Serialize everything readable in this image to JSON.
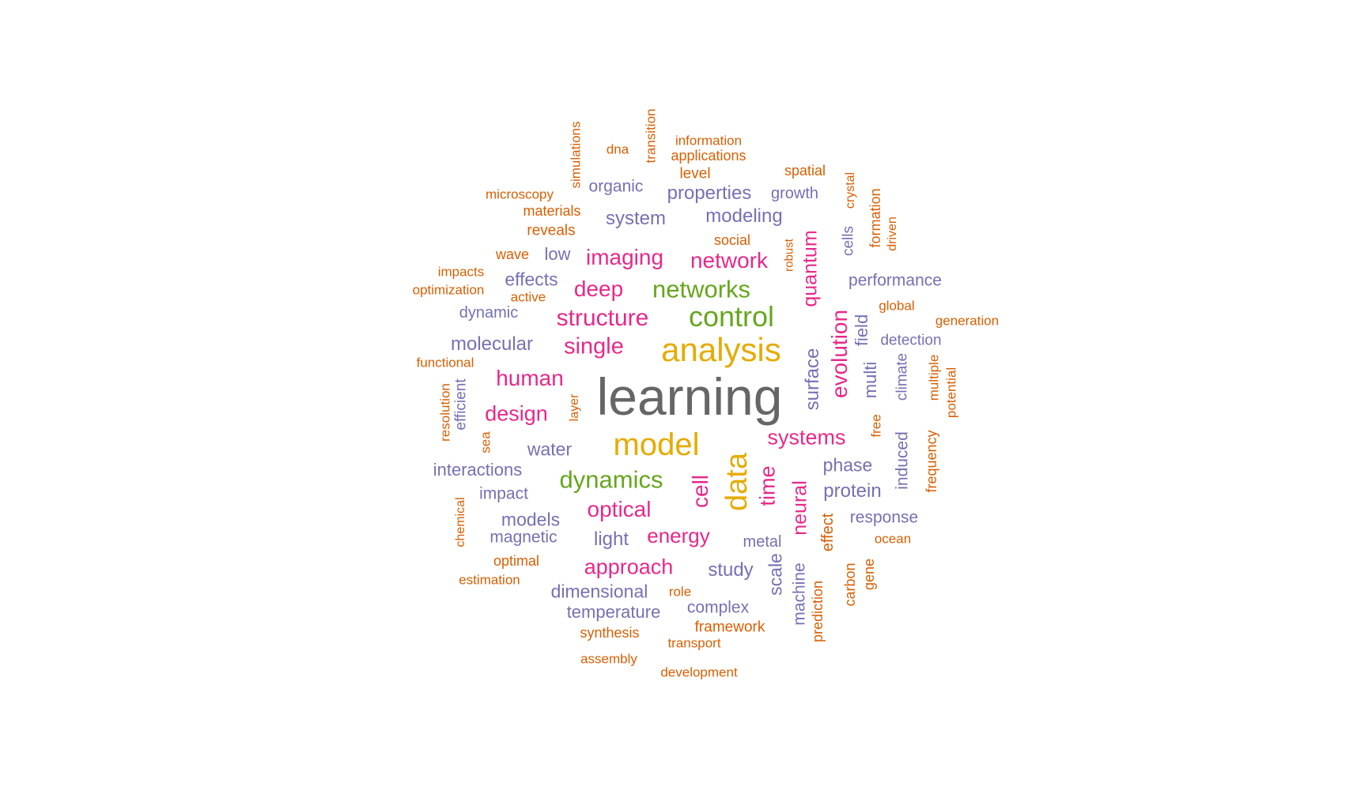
{
  "colors": {
    "gray": "#666666",
    "gold": "#E6AB02",
    "green": "#66A61E",
    "pink": "#E7298A",
    "purple": "#7570B3",
    "orange": "#D95F02"
  },
  "words": [
    {
      "text": "learning",
      "color": "gray"
    },
    {
      "text": "analysis",
      "color": "gold"
    },
    {
      "text": "model",
      "color": "gold"
    },
    {
      "text": "data",
      "color": "gold"
    },
    {
      "text": "control",
      "color": "green"
    },
    {
      "text": "networks",
      "color": "green"
    },
    {
      "text": "dynamics",
      "color": "green"
    },
    {
      "text": "imaging",
      "color": "pink"
    },
    {
      "text": "network",
      "color": "pink"
    },
    {
      "text": "deep",
      "color": "pink"
    },
    {
      "text": "structure",
      "color": "pink"
    },
    {
      "text": "single",
      "color": "pink"
    },
    {
      "text": "human",
      "color": "pink"
    },
    {
      "text": "design",
      "color": "pink"
    },
    {
      "text": "systems",
      "color": "pink"
    },
    {
      "text": "optical",
      "color": "pink"
    },
    {
      "text": "energy",
      "color": "pink"
    },
    {
      "text": "approach",
      "color": "pink"
    },
    {
      "text": "quantum",
      "color": "pink"
    },
    {
      "text": "evolution",
      "color": "pink"
    },
    {
      "text": "cell",
      "color": "pink"
    },
    {
      "text": "time",
      "color": "pink"
    },
    {
      "text": "neural",
      "color": "pink"
    },
    {
      "text": "organic",
      "color": "purple"
    },
    {
      "text": "properties",
      "color": "purple"
    },
    {
      "text": "growth",
      "color": "purple"
    },
    {
      "text": "system",
      "color": "purple"
    },
    {
      "text": "modeling",
      "color": "purple"
    },
    {
      "text": "low",
      "color": "purple"
    },
    {
      "text": "effects",
      "color": "purple"
    },
    {
      "text": "performance",
      "color": "purple"
    },
    {
      "text": "dynamic",
      "color": "purple"
    },
    {
      "text": "molecular",
      "color": "purple"
    },
    {
      "text": "detection",
      "color": "purple"
    },
    {
      "text": "water",
      "color": "purple"
    },
    {
      "text": "phase",
      "color": "purple"
    },
    {
      "text": "interactions",
      "color": "purple"
    },
    {
      "text": "protein",
      "color": "purple"
    },
    {
      "text": "impact",
      "color": "purple"
    },
    {
      "text": "models",
      "color": "purple"
    },
    {
      "text": "response",
      "color": "purple"
    },
    {
      "text": "magnetic",
      "color": "purple"
    },
    {
      "text": "light",
      "color": "purple"
    },
    {
      "text": "metal",
      "color": "purple"
    },
    {
      "text": "study",
      "color": "purple"
    },
    {
      "text": "dimensional",
      "color": "purple"
    },
    {
      "text": "complex",
      "color": "purple"
    },
    {
      "text": "temperature",
      "color": "purple"
    },
    {
      "text": "cells",
      "color": "purple"
    },
    {
      "text": "surface",
      "color": "purple"
    },
    {
      "text": "field",
      "color": "purple"
    },
    {
      "text": "multi",
      "color": "purple"
    },
    {
      "text": "climate",
      "color": "purple"
    },
    {
      "text": "efficient",
      "color": "purple"
    },
    {
      "text": "induced",
      "color": "purple"
    },
    {
      "text": "scale",
      "color": "purple"
    },
    {
      "text": "machine",
      "color": "purple"
    },
    {
      "text": "information",
      "color": "orange"
    },
    {
      "text": "applications",
      "color": "orange"
    },
    {
      "text": "dna",
      "color": "orange"
    },
    {
      "text": "level",
      "color": "orange"
    },
    {
      "text": "spatial",
      "color": "orange"
    },
    {
      "text": "microscopy",
      "color": "orange"
    },
    {
      "text": "materials",
      "color": "orange"
    },
    {
      "text": "reveals",
      "color": "orange"
    },
    {
      "text": "social",
      "color": "orange"
    },
    {
      "text": "wave",
      "color": "orange"
    },
    {
      "text": "impacts",
      "color": "orange"
    },
    {
      "text": "optimization",
      "color": "orange"
    },
    {
      "text": "active",
      "color": "orange"
    },
    {
      "text": "global",
      "color": "orange"
    },
    {
      "text": "generation",
      "color": "orange"
    },
    {
      "text": "functional",
      "color": "orange"
    },
    {
      "text": "ocean",
      "color": "orange"
    },
    {
      "text": "optimal",
      "color": "orange"
    },
    {
      "text": "estimation",
      "color": "orange"
    },
    {
      "text": "role",
      "color": "orange"
    },
    {
      "text": "framework",
      "color": "orange"
    },
    {
      "text": "synthesis",
      "color": "orange"
    },
    {
      "text": "transport",
      "color": "orange"
    },
    {
      "text": "assembly",
      "color": "orange"
    },
    {
      "text": "development",
      "color": "orange"
    },
    {
      "text": "simulations",
      "color": "orange"
    },
    {
      "text": "transition",
      "color": "orange"
    },
    {
      "text": "crystal",
      "color": "orange"
    },
    {
      "text": "formation",
      "color": "orange"
    },
    {
      "text": "driven",
      "color": "orange"
    },
    {
      "text": "robust",
      "color": "orange"
    },
    {
      "text": "multiple",
      "color": "orange"
    },
    {
      "text": "potential",
      "color": "orange"
    },
    {
      "text": "resolution",
      "color": "orange"
    },
    {
      "text": "sea",
      "color": "orange"
    },
    {
      "text": "layer",
      "color": "orange"
    },
    {
      "text": "free",
      "color": "orange"
    },
    {
      "text": "frequency",
      "color": "orange"
    },
    {
      "text": "chemical",
      "color": "orange"
    },
    {
      "text": "effect",
      "color": "orange"
    },
    {
      "text": "prediction",
      "color": "orange"
    },
    {
      "text": "carbon",
      "color": "orange"
    },
    {
      "text": "gene",
      "color": "orange"
    }
  ]
}
